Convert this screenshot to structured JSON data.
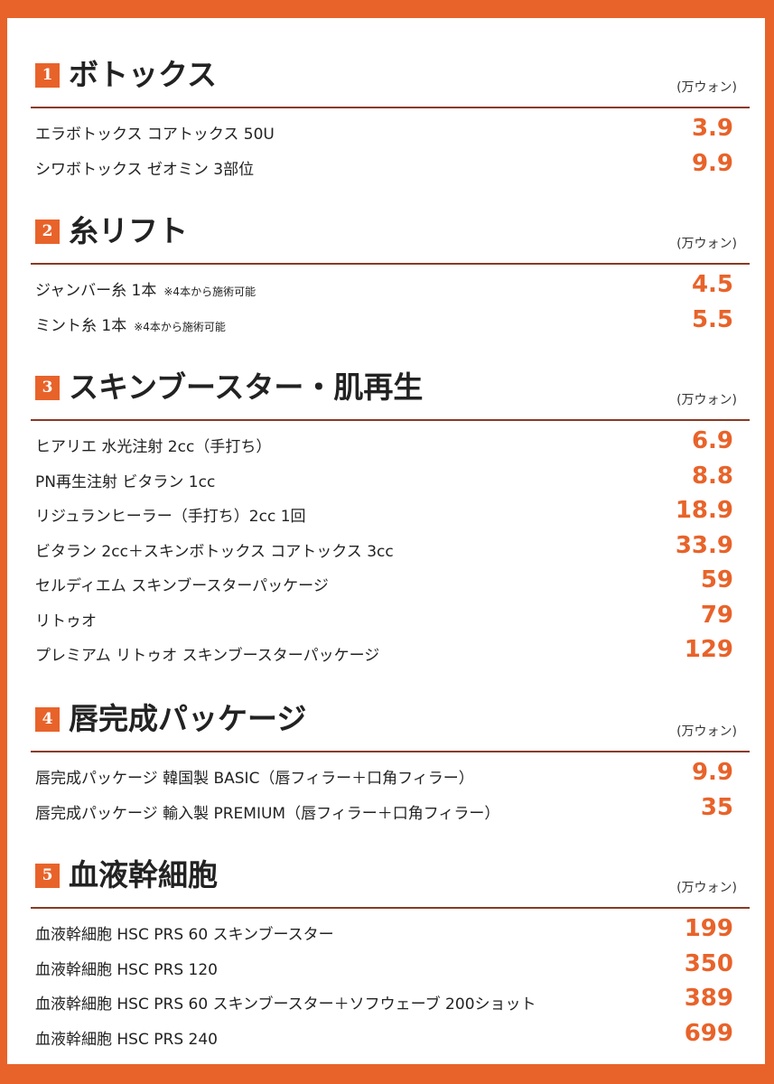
{
  "unit": "(万ウォン)",
  "sections": [
    {
      "num": "1",
      "title": "ボトックス",
      "items": [
        {
          "name": "エラボトックス コアトックス 50U",
          "note": "",
          "price": "3.9"
        },
        {
          "name": "シワボトックス ゼオミン 3部位",
          "note": "",
          "price": "9.9"
        }
      ]
    },
    {
      "num": "2",
      "title": "糸リフト",
      "items": [
        {
          "name": "ジャンバー糸 1本",
          "note": "※4本から施術可能",
          "price": "4.5"
        },
        {
          "name": "ミント糸 1本",
          "note": "※4本から施術可能",
          "price": "5.5"
        }
      ]
    },
    {
      "num": "3",
      "title": "スキンブースター・肌再生",
      "items": [
        {
          "name": "ヒアリエ 水光注射 2cc（手打ち）",
          "note": "",
          "price": "6.9"
        },
        {
          "name": "PN再生注射 ビタラン 1cc",
          "note": "",
          "price": "8.8"
        },
        {
          "name": "リジュランヒーラー（手打ち）2cc 1回",
          "note": "",
          "price": "18.9"
        },
        {
          "name": "ビタラン 2cc＋スキンボトックス コアトックス 3cc",
          "note": "",
          "price": "33.9"
        },
        {
          "name": "セルディエム スキンブースターパッケージ",
          "note": "",
          "price": "59"
        },
        {
          "name": "リトゥオ",
          "note": "",
          "price": "79"
        },
        {
          "name": "プレミアム リトゥオ スキンブースターパッケージ",
          "note": "",
          "price": "129"
        }
      ]
    },
    {
      "num": "4",
      "title": "唇完成パッケージ",
      "items": [
        {
          "name": "唇完成パッケージ 韓国製 BASIC（唇フィラー＋口角フィラー）",
          "note": "",
          "price": "9.9"
        },
        {
          "name": "唇完成パッケージ 輸入製 PREMIUM（唇フィラー＋口角フィラー）",
          "note": "",
          "price": "35"
        }
      ]
    },
    {
      "num": "5",
      "title": "血液幹細胞",
      "items": [
        {
          "name": "血液幹細胞 HSC PRS 60 スキンブースター",
          "note": "",
          "price": "199"
        },
        {
          "name": "血液幹細胞 HSC PRS 120",
          "note": "",
          "price": "350"
        },
        {
          "name": "血液幹細胞 HSC PRS 60 スキンブースター＋ソフウェーブ 200ショット",
          "note": "",
          "price": "389"
        },
        {
          "name": "血液幹細胞 HSC PRS 240",
          "note": "",
          "price": "699"
        }
      ]
    }
  ]
}
